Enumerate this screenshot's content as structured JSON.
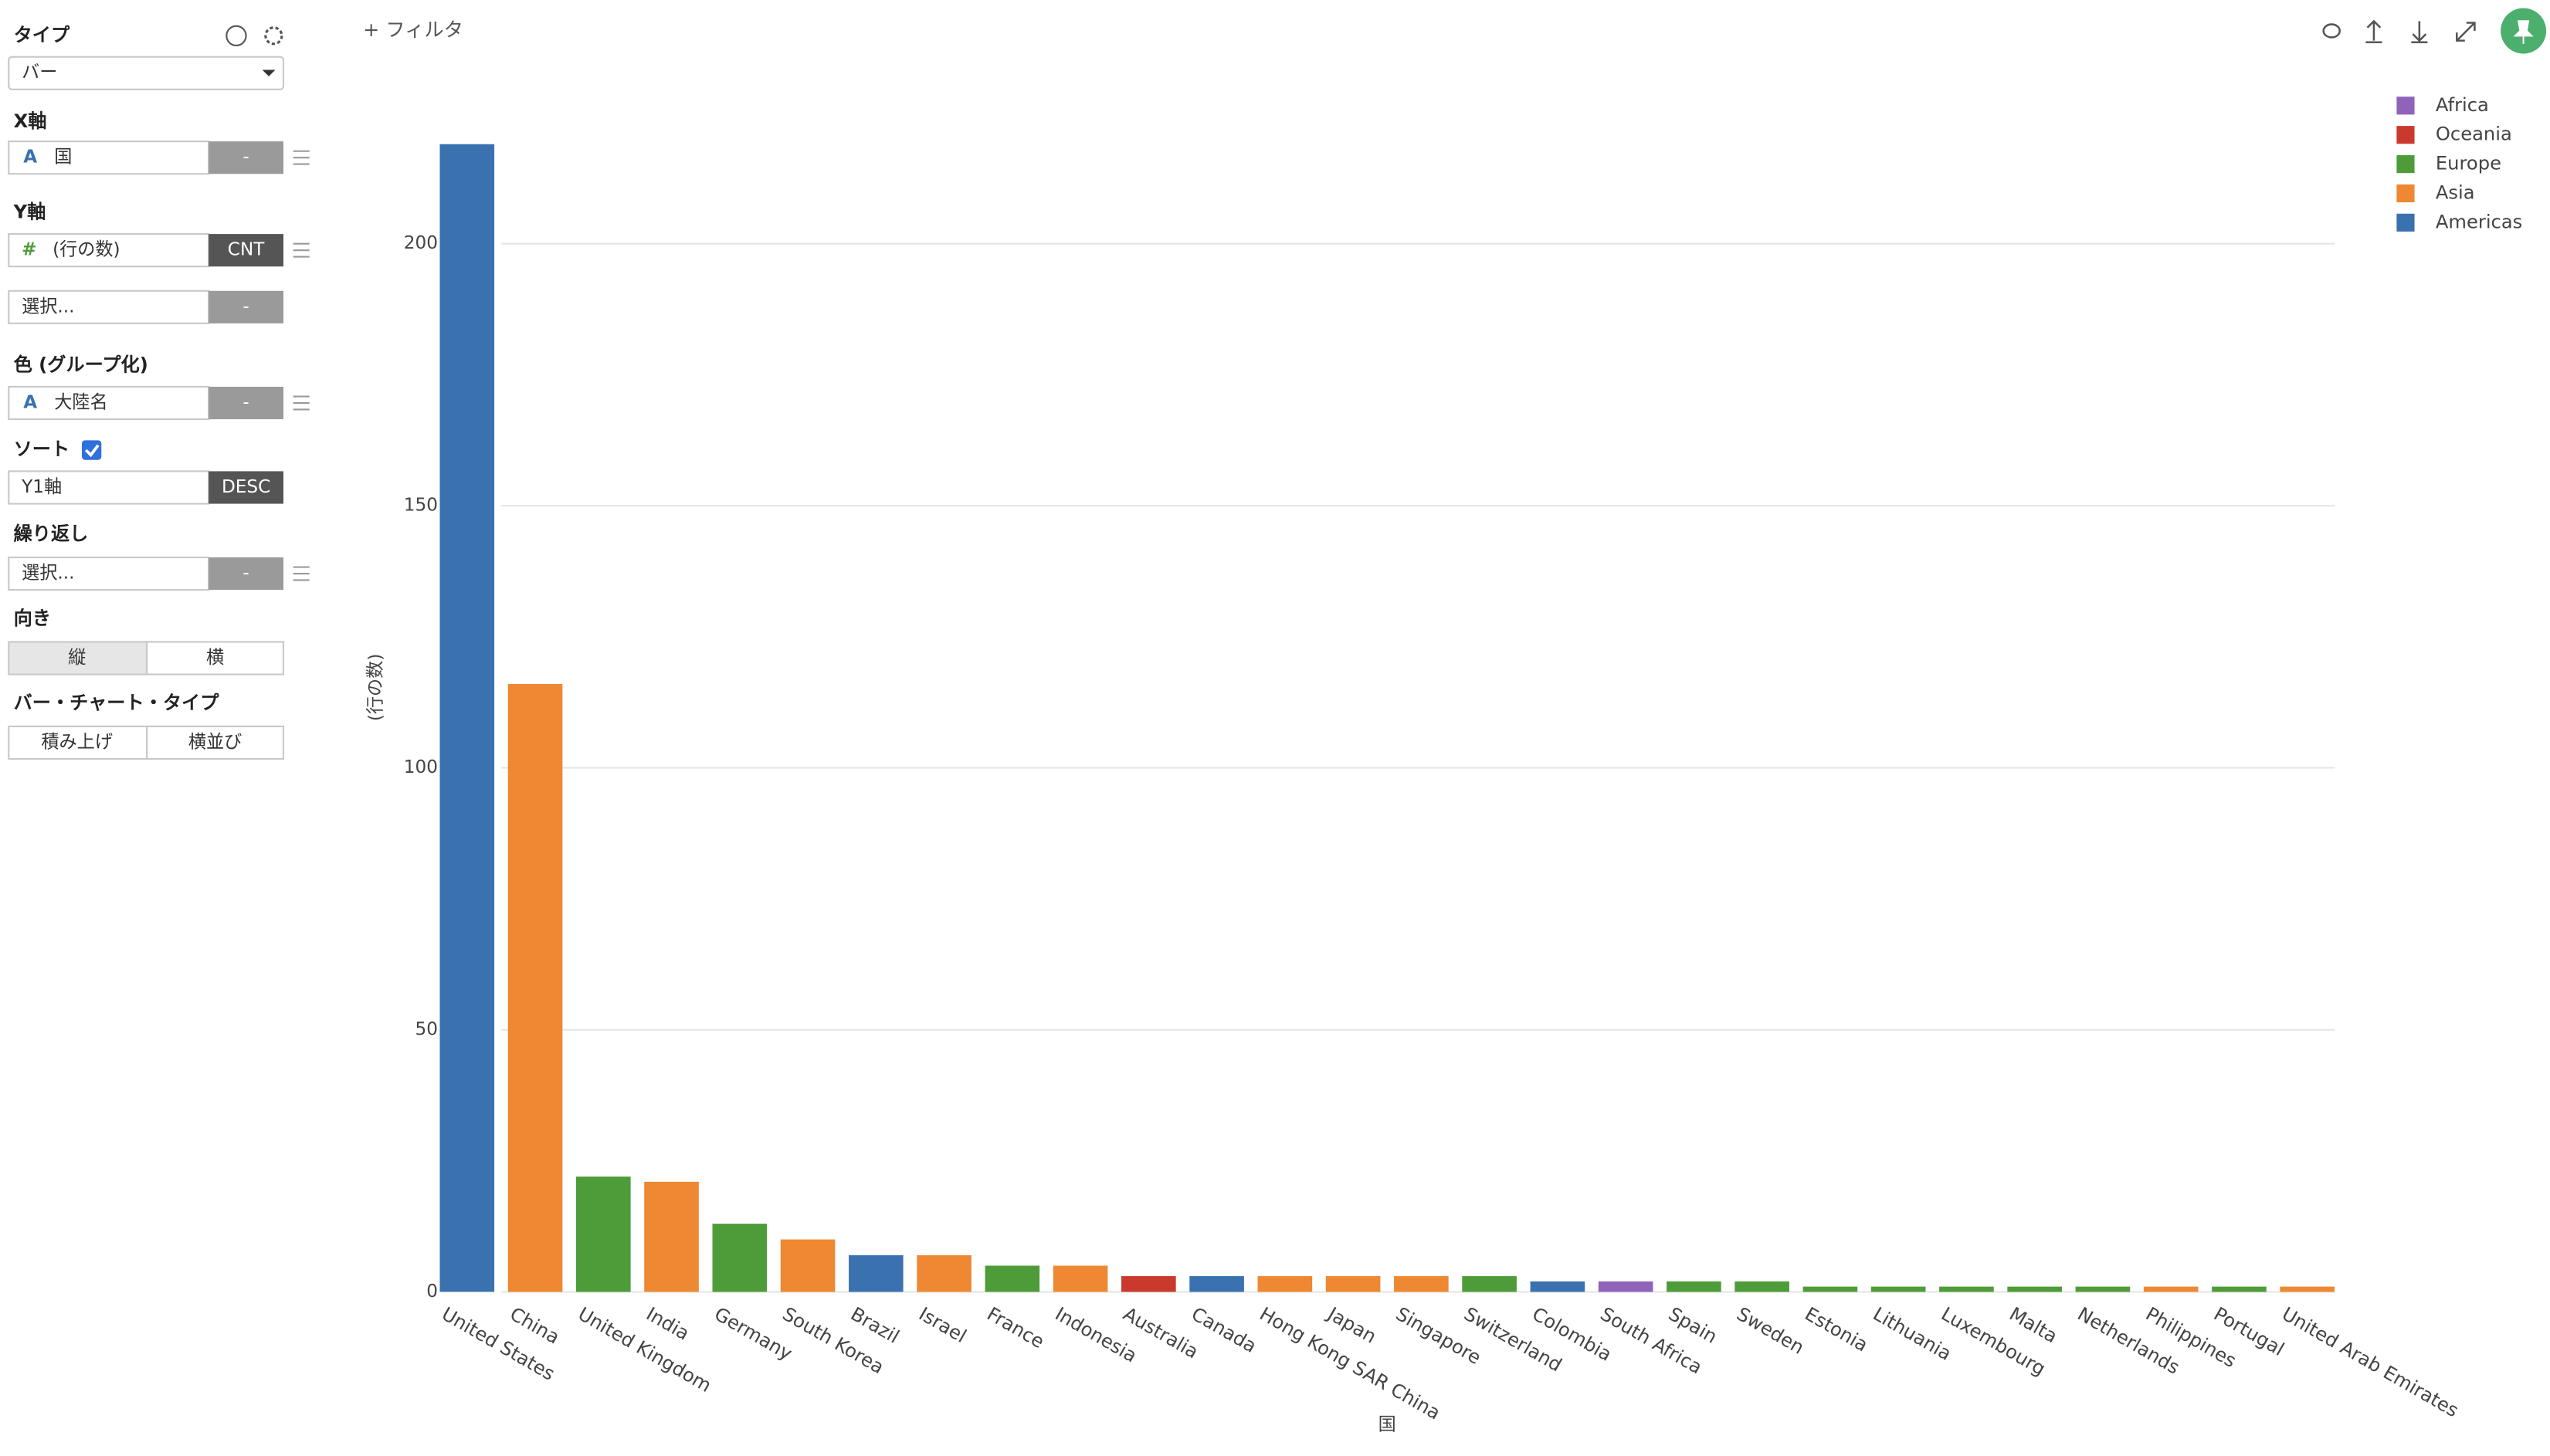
{
  "toolbar": {
    "filter": "+ フィルタ"
  },
  "sidebar": {
    "type_label": "タイプ",
    "type_value": "バー",
    "x_label": "X軸",
    "x_icon": "A",
    "x_field": "国",
    "x_agg": "-",
    "y_label": "Y軸",
    "y_icon": "#",
    "y_field": "(行の数)",
    "y_agg": "CNT",
    "y2_field": "選択...",
    "y2_agg": "-",
    "color_label": "色 (グループ化)",
    "color_icon": "A",
    "color_field": "大陸名",
    "color_agg": "-",
    "sort_label": "ソート",
    "sort_field": "Y1軸",
    "sort_order": "DESC",
    "repeat_label": "繰り返し",
    "repeat_field": "選択...",
    "repeat_agg": "-",
    "orientation_label": "向き",
    "orientation_options": [
      "縦",
      "横"
    ],
    "bar_type_label": "バー・チャート・タイプ",
    "bar_type_options": [
      "積み上げ",
      "横並び"
    ]
  },
  "chart_data": {
    "type": "bar",
    "stacked": true,
    "x_label": "国",
    "y_label": "(行の数)",
    "categories": [
      "United States",
      "China",
      "United Kingdom",
      "India",
      "Germany",
      "South Korea",
      "Brazil",
      "Israel",
      "France",
      "Indonesia",
      "Australia",
      "Canada",
      "Hong Kong SAR China",
      "Japan",
      "Singapore",
      "Switzerland",
      "Colombia",
      "South Africa",
      "Spain",
      "Sweden",
      "Estonia",
      "Lithuania",
      "Luxembourg",
      "Malta",
      "Netherlands",
      "Philippines",
      "Portugal",
      "United Arab Emirates"
    ],
    "series": [
      {
        "name": "Africa",
        "color": "#8e63b9",
        "values": [
          null,
          null,
          null,
          null,
          null,
          null,
          null,
          null,
          null,
          null,
          null,
          null,
          null,
          null,
          null,
          null,
          null,
          2,
          null,
          null,
          null,
          null,
          null,
          null,
          null,
          null,
          null,
          null
        ]
      },
      {
        "name": "Oceania",
        "color": "#c9392c",
        "values": [
          null,
          null,
          null,
          null,
          null,
          null,
          null,
          null,
          null,
          null,
          3,
          null,
          null,
          null,
          null,
          null,
          null,
          null,
          null,
          null,
          null,
          null,
          null,
          null,
          null,
          null,
          null,
          null
        ]
      },
      {
        "name": "Europe",
        "color": "#4e9c39",
        "values": [
          null,
          null,
          22,
          null,
          13,
          null,
          null,
          null,
          5,
          null,
          null,
          null,
          null,
          null,
          null,
          3,
          null,
          null,
          2,
          2,
          1,
          1,
          1,
          1,
          1,
          null,
          1,
          null
        ]
      },
      {
        "name": "Asia",
        "color": "#ee8833",
        "values": [
          null,
          116,
          null,
          21,
          null,
          10,
          null,
          7,
          null,
          5,
          null,
          null,
          3,
          3,
          3,
          null,
          null,
          null,
          null,
          null,
          null,
          null,
          null,
          null,
          null,
          1,
          null,
          1
        ]
      },
      {
        "name": "Americas",
        "color": "#3a72b0",
        "values": [
          219,
          null,
          null,
          null,
          null,
          null,
          7,
          null,
          null,
          null,
          null,
          3,
          null,
          null,
          null,
          null,
          2,
          null,
          null,
          null,
          null,
          null,
          null,
          null,
          null,
          null,
          null,
          null
        ]
      }
    ],
    "ylim": [
      0,
      220
    ],
    "yticks": [
      0,
      50,
      100,
      150,
      200
    ],
    "grid": true,
    "legend": "top-right"
  }
}
